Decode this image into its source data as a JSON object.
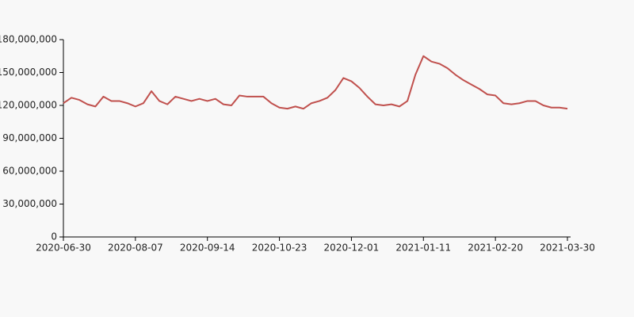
{
  "chart_data": {
    "type": "line",
    "categories": [
      "2020-06-30",
      null,
      null,
      null,
      null,
      null,
      null,
      null,
      null,
      "2020-08-07",
      null,
      null,
      null,
      null,
      null,
      null,
      null,
      null,
      "2020-09-14",
      null,
      null,
      null,
      null,
      null,
      null,
      null,
      null,
      "2020-10-23",
      null,
      null,
      null,
      null,
      null,
      null,
      null,
      null,
      "2020-12-01",
      null,
      null,
      null,
      null,
      null,
      null,
      null,
      null,
      "2021-01-11",
      null,
      null,
      null,
      null,
      null,
      null,
      null,
      null,
      "2021-02-20",
      null,
      null,
      null,
      null,
      null,
      null,
      null,
      null,
      "2021-03-30"
    ],
    "series": [
      {
        "color": "#c0504d",
        "values": [
          122000000,
          127000000,
          125000000,
          121000000,
          119000000,
          128000000,
          124000000,
          124000000,
          122000000,
          119000000,
          122000000,
          133000000,
          124000000,
          121000000,
          128000000,
          126000000,
          124000000,
          126000000,
          124000000,
          126000000,
          121000000,
          120000000,
          129000000,
          128000000,
          128000000,
          128000000,
          122000000,
          118000000,
          117000000,
          119000000,
          117000000,
          122000000,
          124000000,
          127000000,
          134000000,
          145000000,
          142000000,
          136000000,
          128000000,
          121000000,
          120000000,
          121000000,
          119000000,
          124000000,
          148000000,
          165000000,
          160000000,
          158000000,
          154000000,
          148000000,
          143000000,
          139000000,
          135000000,
          130000000,
          129000000,
          122000000,
          121000000,
          122000000,
          124000000,
          124000000,
          120000000,
          118000000,
          118000000,
          117000000
        ]
      }
    ],
    "ylim": [
      0,
      180000000
    ],
    "yticks": [
      0,
      {
        "value": 30000000,
        "label": "30,000,000"
      },
      {
        "value": 60000000,
        "label": "60,000,000"
      },
      {
        "value": 90000000,
        "label": "90,000,000"
      },
      {
        "value": 120000000,
        "label": "120,000,000"
      },
      {
        "value": 150000000,
        "label": "150,000,000"
      },
      {
        "value": 180000000,
        "label": "180,000,000"
      }
    ]
  }
}
